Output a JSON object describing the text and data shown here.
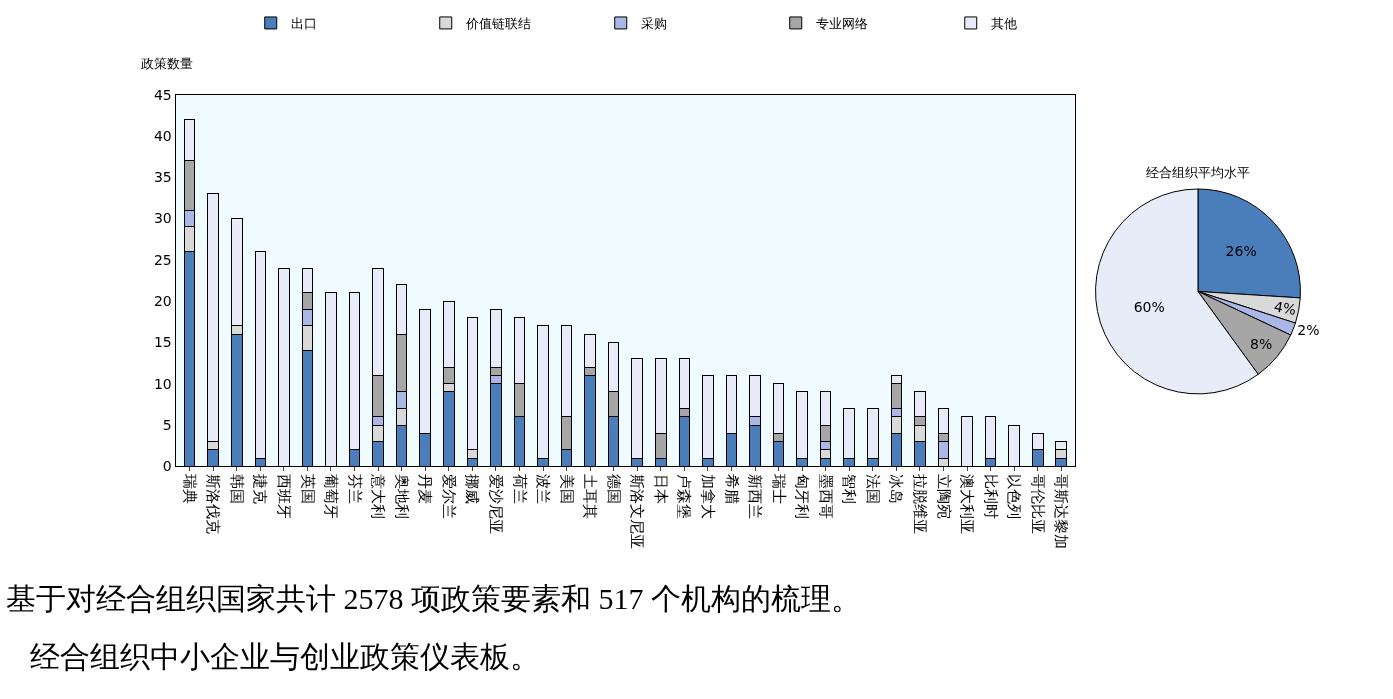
{
  "chart_data": [
    {
      "type": "bar",
      "stacked": true,
      "ylabel": "政策数量",
      "ylim": [
        0,
        45
      ],
      "yticks": [
        0,
        5,
        10,
        15,
        20,
        25,
        30,
        35,
        40,
        45
      ],
      "legend": "top",
      "categories": [
        "瑞典",
        "斯洛伐克",
        "韩国",
        "捷克",
        "西班牙",
        "英国",
        "葡萄牙",
        "芬兰",
        "意大利",
        "奥地利",
        "丹麦",
        "爱尔兰",
        "挪威",
        "爱沙尼亚",
        "荷兰",
        "波兰",
        "美国",
        "土耳其",
        "德国",
        "斯洛文尼亚",
        "日本",
        "卢森堡",
        "加拿大",
        "希腊",
        "新西兰",
        "瑞士",
        "匈牙利",
        "墨西哥",
        "智利",
        "法国",
        "冰岛",
        "拉脱维亚",
        "立陶宛",
        "澳大利亚",
        "比利时",
        "以色列",
        "哥伦比亚",
        "哥斯达黎加"
      ],
      "series": [
        {
          "name": "出口",
          "color": "#4a7ebb",
          "values": [
            26,
            2,
            16,
            1,
            0,
            14,
            0,
            2,
            3,
            5,
            4,
            9,
            1,
            10,
            6,
            1,
            2,
            11,
            6,
            1,
            1,
            6,
            1,
            4,
            5,
            3,
            1,
            1,
            1,
            1,
            4,
            3,
            0,
            0,
            1,
            0,
            2,
            1
          ]
        },
        {
          "name": "价值链联结",
          "color": "#d9d9d9",
          "values": [
            3,
            1,
            1,
            0,
            0,
            3,
            0,
            0,
            2,
            2,
            0,
            1,
            1,
            0,
            0,
            0,
            0,
            0,
            0,
            0,
            0,
            0,
            0,
            0,
            0,
            0,
            0,
            1,
            0,
            0,
            2,
            2,
            1,
            0,
            0,
            0,
            0,
            1
          ]
        },
        {
          "name": "采购",
          "color": "#a9b8e6",
          "values": [
            2,
            0,
            0,
            0,
            0,
            2,
            0,
            0,
            1,
            2,
            0,
            0,
            0,
            1,
            0,
            0,
            0,
            0,
            0,
            0,
            0,
            0,
            0,
            0,
            1,
            0,
            0,
            1,
            0,
            0,
            1,
            0,
            2,
            0,
            0,
            0,
            0,
            0
          ]
        },
        {
          "name": "专业网络",
          "color": "#a6a6a6",
          "values": [
            6,
            0,
            0,
            0,
            0,
            2,
            0,
            0,
            5,
            7,
            0,
            2,
            0,
            1,
            4,
            0,
            4,
            1,
            3,
            0,
            3,
            1,
            0,
            0,
            0,
            1,
            0,
            2,
            0,
            0,
            3,
            1,
            1,
            0,
            0,
            0,
            0,
            0
          ]
        },
        {
          "name": "其他",
          "color": "#e8ecf8",
          "values": [
            5,
            30,
            13,
            25,
            24,
            3,
            21,
            19,
            13,
            6,
            15,
            8,
            16,
            7,
            8,
            16,
            11,
            4,
            6,
            12,
            9,
            6,
            10,
            7,
            5,
            6,
            8,
            4,
            6,
            6,
            1,
            3,
            3,
            6,
            5,
            5,
            2,
            1
          ]
        }
      ],
      "annotations": [
        "基于对经合组织国家共计 2578 项政策要素和 517 个机构的梳理。",
        "经合组织中小企业与创业政策仪表板。"
      ]
    },
    {
      "type": "pie",
      "title": "经合组织平均水平",
      "values": [
        26,
        4,
        2,
        8,
        60
      ],
      "colors": [
        "#4a7ebb",
        "#d9d9d9",
        "#a9b8e6",
        "#a6a6a6",
        "#e8ecf8"
      ],
      "value_labels": [
        "26%",
        "4%",
        "2%",
        "8%",
        "60%"
      ]
    }
  ]
}
